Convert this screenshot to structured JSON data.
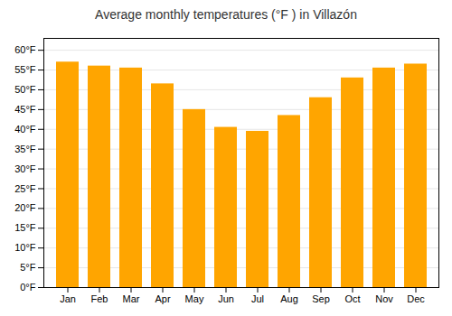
{
  "chart_data": {
    "type": "bar",
    "title": "Average monthly temperatures (°F ) in Villazón",
    "categories": [
      "Jan",
      "Feb",
      "Mar",
      "Apr",
      "May",
      "Jun",
      "Jul",
      "Aug",
      "Sep",
      "Oct",
      "Nov",
      "Dec"
    ],
    "values": [
      57,
      56,
      55.5,
      51.5,
      45,
      40.5,
      39.5,
      43.5,
      48,
      53,
      55.5,
      56.5
    ],
    "color": "#FFA500",
    "ylim": [
      0,
      63
    ],
    "yticks": [
      {
        "value": 0,
        "label": "0°F"
      },
      {
        "value": 5,
        "label": "5°F"
      },
      {
        "value": 10,
        "label": "10°F"
      },
      {
        "value": 15,
        "label": "15°F"
      },
      {
        "value": 20,
        "label": "20°F"
      },
      {
        "value": 25,
        "label": "25°F"
      },
      {
        "value": 30,
        "label": "30°F"
      },
      {
        "value": 35,
        "label": "35°F"
      },
      {
        "value": 40,
        "label": "40°F"
      },
      {
        "value": 45,
        "label": "45°F"
      },
      {
        "value": 50,
        "label": "50°F"
      },
      {
        "value": 55,
        "label": "55°F"
      },
      {
        "value": 60,
        "label": "60°F"
      }
    ],
    "grid": true
  }
}
